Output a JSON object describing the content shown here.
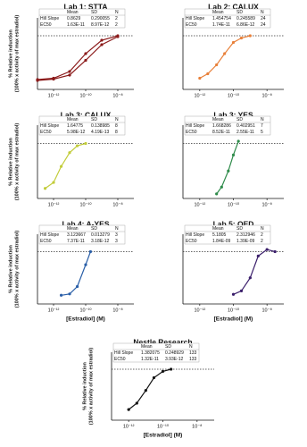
{
  "chart_data": [
    {
      "type": "line",
      "title": "Lab 1: STTA",
      "table": {
        "columns": [
          "Mean",
          "SD",
          "N"
        ],
        "rows": [
          [
            "Hill Slope",
            "0.8629",
            "0.290055",
            "2"
          ],
          [
            "EC50",
            "1.63E-11",
            "8.97E-12",
            "2"
          ]
        ]
      },
      "ylabel": [
        "% Relative induction",
        "(100% x activity of max estradiol)"
      ],
      "log_x": true,
      "xlim": [
        1e-13,
        1e-07
      ],
      "ylim": [
        -20,
        140
      ],
      "hline": 100,
      "xticks": [
        {
          "value": 1e-12,
          "label": "10⁻¹²"
        },
        {
          "value": 1e-10,
          "label": "10⁻¹⁰"
        },
        {
          "value": 1e-08,
          "label": "10⁻⁸"
        }
      ],
      "x": [
        1e-13,
        1e-12,
        1e-11,
        1e-10,
        1e-09,
        1e-08
      ],
      "series": [
        {
          "color": "#8b1a1a",
          "values": [
            2,
            5,
            20,
            60,
            90,
            100
          ]
        },
        {
          "color": "#8b1a1a",
          "values": [
            0,
            3,
            12,
            45,
            80,
            98
          ]
        }
      ]
    },
    {
      "type": "line",
      "title": "Lab 2: CALUX",
      "table": {
        "columns": [
          "Mean",
          "SD",
          "N"
        ],
        "rows": [
          [
            "Hill Slope",
            "1.454754",
            "0.245589",
            "24"
          ],
          [
            "EC50",
            "1.74E-11",
            "6.86E-12",
            "24"
          ]
        ]
      },
      "log_x": true,
      "xlim": [
        1e-13,
        1e-07
      ],
      "ylim": [
        -20,
        140
      ],
      "hline": 100,
      "xticks": [
        {
          "value": 1e-12,
          "label": "10⁻¹²"
        },
        {
          "value": 1e-10,
          "label": "10⁻¹⁰"
        },
        {
          "value": 1e-08,
          "label": "10⁻⁸"
        }
      ],
      "x": [
        1e-12,
        3e-12,
        1e-11,
        3e-11,
        1e-10,
        3e-10,
        1e-09
      ],
      "series": [
        {
          "color": "#e8803a",
          "values": [
            5,
            15,
            35,
            60,
            85,
            95,
            100
          ]
        }
      ]
    },
    {
      "type": "line",
      "title": "Lab 3: CALUX",
      "table": {
        "columns": [
          "Mean",
          "SD",
          "N"
        ],
        "rows": [
          [
            "Hill Slope",
            "1.64775",
            "0.138985",
            "8"
          ],
          [
            "EC50",
            "5.98E-12",
            "4.19E-13",
            "8"
          ]
        ]
      },
      "ylabel": [
        "% Relative induction",
        "(100% x activity of max estradiol)"
      ],
      "log_x": true,
      "xlim": [
        1e-13,
        1e-07
      ],
      "ylim": [
        -20,
        140
      ],
      "hline": 100,
      "xticks": [
        {
          "value": 1e-12,
          "label": "10⁻¹²"
        },
        {
          "value": 1e-10,
          "label": "10⁻¹⁰"
        },
        {
          "value": 1e-08,
          "label": "10⁻⁸"
        }
      ],
      "x": [
        3e-13,
        1e-12,
        3e-12,
        1e-11,
        3e-11,
        1e-10
      ],
      "series": [
        {
          "color": "#c2cc3a",
          "values": [
            2,
            15,
            50,
            80,
            95,
            100
          ]
        }
      ]
    },
    {
      "type": "line",
      "title": "Lab 3: YES",
      "table": {
        "columns": [
          "Mean",
          "SD",
          "N"
        ],
        "rows": [
          [
            "Hill Slope",
            "1.668286",
            "0.402951",
            "7"
          ],
          [
            "EC50",
            "8.52E-11",
            "2.55E-11",
            "5"
          ]
        ]
      },
      "log_x": true,
      "xlim": [
        1e-13,
        1e-07
      ],
      "ylim": [
        -20,
        140
      ],
      "hline": 100,
      "xticks": [
        {
          "value": 1e-12,
          "label": "10⁻¹²"
        },
        {
          "value": 1e-10,
          "label": "10⁻¹⁰"
        },
        {
          "value": 1e-08,
          "label": "10⁻⁸"
        }
      ],
      "x": [
        1e-11,
        2e-11,
        5e-11,
        1e-10,
        2e-10
      ],
      "series": [
        {
          "color": "#2e8b4a",
          "values": [
            -10,
            5,
            40,
            75,
            105
          ]
        }
      ]
    },
    {
      "type": "line",
      "title": "Lab 4: A-YES",
      "table": {
        "columns": [
          "Mean",
          "SD",
          "N"
        ],
        "rows": [
          [
            "Hill Slope",
            "3.123667",
            "0.013279",
            "3"
          ],
          [
            "EC50",
            "7.37E-11",
            "3.18E-12",
            "3"
          ]
        ]
      },
      "ylabel": [
        "% Relative induction",
        "(100% x activity of max estradiol)"
      ],
      "xlabel": "[Estradiol] (M)",
      "log_x": true,
      "xlim": [
        1e-13,
        1e-07
      ],
      "ylim": [
        -20,
        140
      ],
      "hline": 100,
      "xticks": [
        {
          "value": 1e-12,
          "label": "10⁻¹²"
        },
        {
          "value": 1e-10,
          "label": "10⁻¹⁰"
        },
        {
          "value": 1e-08,
          "label": "10⁻⁸"
        }
      ],
      "x": [
        3e-12,
        1e-11,
        3e-11,
        1e-10,
        2e-10
      ],
      "series": [
        {
          "color": "#2a5fa8",
          "values": [
            0,
            3,
            20,
            70,
            100
          ]
        }
      ]
    },
    {
      "type": "line",
      "title": "Lab 5: OED",
      "table": {
        "columns": [
          "Mean",
          "SD",
          "N"
        ],
        "rows": [
          [
            "Hill Slope",
            "5.1805",
            "2.312946",
            "2"
          ],
          [
            "EC50",
            "1.84E-09",
            "1.39E-09",
            "2"
          ]
        ]
      },
      "xlabel": "[Estradiol] (M)",
      "log_x": true,
      "xlim": [
        1e-13,
        1e-07
      ],
      "ylim": [
        -20,
        140
      ],
      "hline": 100,
      "xticks": [
        {
          "value": 1e-12,
          "label": "10⁻¹²"
        },
        {
          "value": 1e-10,
          "label": "10⁻¹⁰"
        },
        {
          "value": 1e-08,
          "label": "10⁻⁸"
        }
      ],
      "x": [
        1e-10,
        3e-10,
        1e-09,
        3e-09,
        1e-08,
        3e-08
      ],
      "series": [
        {
          "color": "#3b1f6b",
          "values": [
            2,
            10,
            40,
            90,
            105,
            100
          ]
        }
      ]
    },
    {
      "type": "line",
      "title": "Nestle Research",
      "table": {
        "columns": [
          "Mean",
          "SD",
          "N"
        ],
        "rows": [
          [
            "Hill Slope",
            "1.382075",
            "0.248929",
            "133"
          ],
          [
            "EC50",
            "1.32E-11",
            "3.93E-12",
            "133"
          ]
        ]
      },
      "ylabel": [
        "% Relative induction",
        "(100% x activity of max estradiol)"
      ],
      "xlabel": "[Estradiol] (M)",
      "log_x": true,
      "xlim": [
        1e-13,
        1e-07
      ],
      "ylim": [
        -20,
        140
      ],
      "hline": 100,
      "xticks": [
        {
          "value": 1e-12,
          "label": "10⁻¹²"
        },
        {
          "value": 1e-10,
          "label": "10⁻¹⁰"
        },
        {
          "value": 1e-08,
          "label": "10⁻⁸"
        }
      ],
      "x": [
        1e-12,
        3e-12,
        1e-11,
        3e-11,
        1e-10,
        3e-10
      ],
      "series": [
        {
          "color": "#111111",
          "values": [
            5,
            20,
            50,
            80,
            95,
            100
          ]
        }
      ]
    }
  ]
}
